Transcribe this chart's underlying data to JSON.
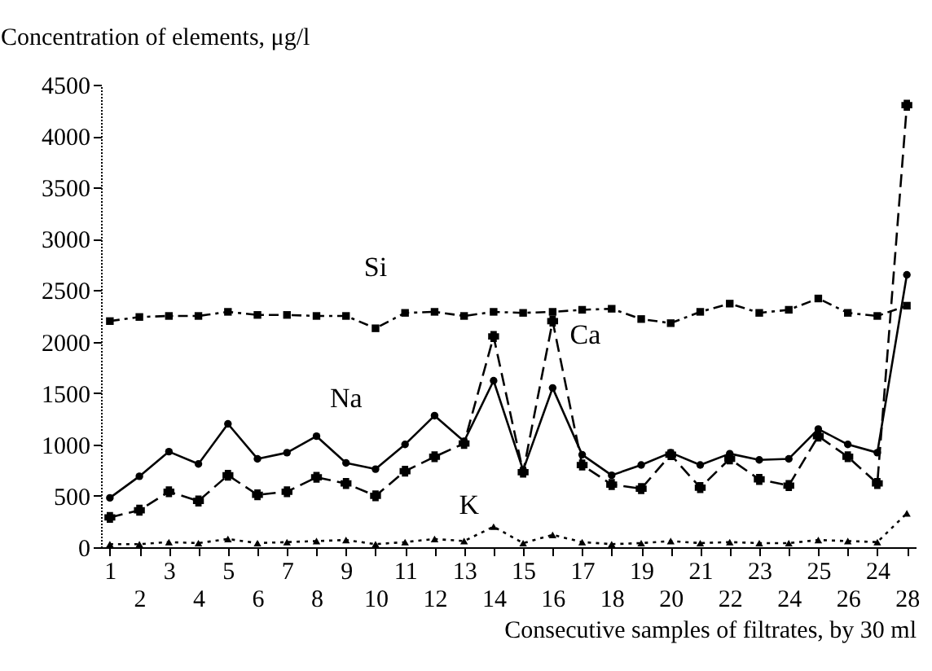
{
  "chart_data": {
    "type": "line",
    "xlabel": "Consecutive samples of filtrates, by 30 ml",
    "ylabel": "Concentration of elements, μg/l",
    "categories": [
      "1",
      "2",
      "3",
      "4",
      "5",
      "6",
      "7",
      "8",
      "9",
      "10",
      "11",
      "12",
      "13",
      "14",
      "15",
      "16",
      "17",
      "18",
      "19",
      "20",
      "21",
      "22",
      "23",
      "24",
      "25",
      "26",
      "24",
      "28"
    ],
    "series": [
      {
        "color": "#000000",
        "line_style": "solid",
        "marker": "circle",
        "values": [
          480,
          690,
          930,
          810,
          1200,
          860,
          920,
          1080,
          820,
          760,
          1000,
          1280,
          1030,
          1620,
          750,
          1550,
          900,
          700,
          800,
          920,
          800,
          910,
          850,
          860,
          1150,
          1000,
          920,
          2650
        ]
      },
      {
        "color": "#000000",
        "line_style": "dashed",
        "marker": "cross",
        "values": [
          290,
          360,
          540,
          450,
          700,
          510,
          540,
          680,
          620,
          500,
          740,
          880,
          1010,
          2050,
          730,
          2200,
          800,
          610,
          570,
          900,
          580,
          860,
          660,
          600,
          1080,
          880,
          620,
          4300
        ]
      },
      {
        "color": "#000000",
        "line_style": "dashdot",
        "marker": "square",
        "values": [
          2200,
          2240,
          2250,
          2250,
          2290,
          2260,
          2260,
          2250,
          2250,
          2130,
          2280,
          2290,
          2250,
          2290,
          2280,
          2290,
          2310,
          2320,
          2220,
          2180,
          2290,
          2370,
          2280,
          2310,
          2420,
          2280,
          2250,
          2350
        ]
      },
      {
        "color": "#000000",
        "line_style": "dotted",
        "marker": "triangle",
        "values": [
          30,
          30,
          50,
          40,
          80,
          40,
          50,
          60,
          70,
          30,
          50,
          80,
          60,
          200,
          40,
          120,
          50,
          30,
          40,
          60,
          40,
          50,
          40,
          40,
          70,
          60,
          50,
          330
        ]
      }
    ],
    "annotations": [
      {
        "text": "Na",
        "x": "9",
        "y": 820
      },
      {
        "text": "Ca",
        "x": "16",
        "y": 2200
      },
      {
        "text": "Si",
        "x": "10",
        "y": 2130
      },
      {
        "text": "K",
        "x": "14",
        "y": 200
      }
    ],
    "ylim": [
      0,
      4500
    ],
    "yticks": [
      0,
      500,
      1000,
      1500,
      2000,
      2500,
      3000,
      3500,
      4000,
      4500
    ]
  }
}
